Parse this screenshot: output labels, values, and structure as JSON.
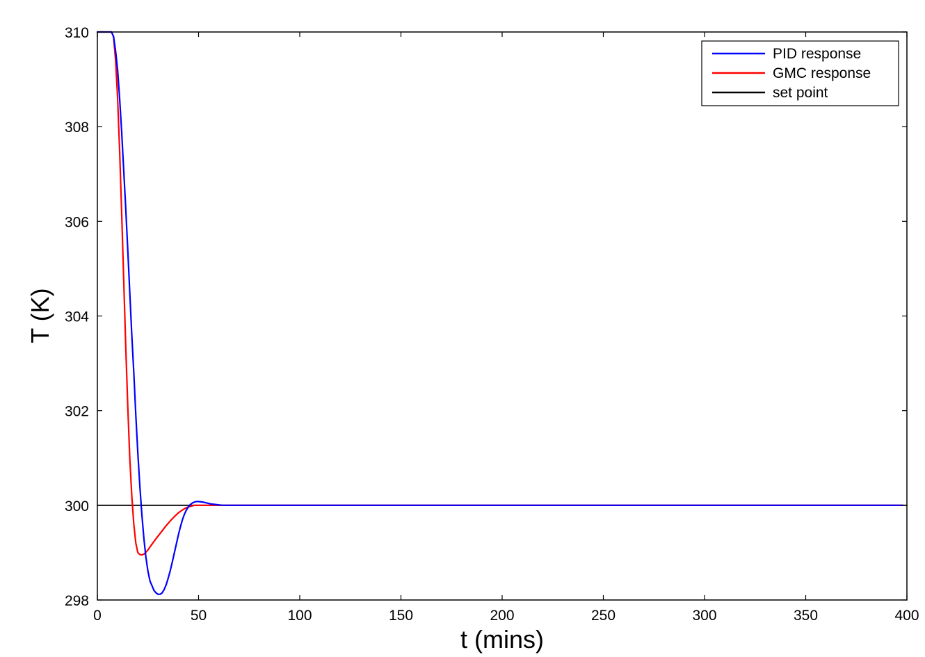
{
  "chart_data": {
    "type": "line",
    "xlabel": "t (mins)",
    "ylabel": "T (K)",
    "xlim": [
      0,
      400
    ],
    "ylim": [
      298,
      310
    ],
    "xticks": [
      "0",
      "50",
      "100",
      "150",
      "200",
      "250",
      "300",
      "350",
      "400"
    ],
    "yticks": [
      "298",
      "300",
      "302",
      "304",
      "306",
      "308",
      "310"
    ],
    "grid": false,
    "legend_position": "top-right",
    "series": [
      {
        "name": "PID response",
        "color": "#0000ff",
        "x": [
          0,
          5,
          7,
          8,
          9,
          10,
          11,
          12,
          13,
          14,
          15,
          16,
          17,
          18,
          19,
          20,
          21,
          22,
          23,
          24,
          25,
          26,
          27,
          28,
          29,
          30,
          31,
          32,
          33,
          34,
          35,
          36,
          37,
          38,
          39,
          40,
          41,
          42,
          43,
          44,
          45,
          46,
          47,
          48,
          49,
          50,
          52,
          54,
          56,
          58,
          60,
          62,
          65,
          68,
          72,
          80,
          100,
          200,
          300,
          398
        ],
        "y": [
          310,
          310,
          310,
          309.9,
          309.6,
          309.2,
          308.6,
          307.9,
          307.1,
          306.3,
          305.4,
          304.5,
          303.6,
          302.8,
          301.9,
          301.1,
          300.4,
          299.8,
          299.3,
          298.9,
          298.6,
          298.4,
          298.3,
          298.2,
          298.15,
          298.12,
          298.12,
          298.15,
          298.22,
          298.32,
          298.46,
          298.62,
          298.8,
          298.99,
          299.18,
          299.37,
          299.54,
          299.69,
          299.81,
          299.9,
          299.97,
          300.02,
          300.05,
          300.07,
          300.08,
          300.08,
          300.07,
          300.05,
          300.03,
          300.02,
          300.01,
          300.0,
          300.0,
          300.0,
          300.0,
          300.0,
          300.0,
          300.0,
          300.0,
          300.0
        ]
      },
      {
        "name": "GMC response",
        "color": "#ff0000",
        "x": [
          0,
          5,
          7,
          8,
          9,
          10,
          11,
          12,
          13,
          14,
          15,
          16,
          17,
          18,
          19,
          20,
          21,
          22,
          23,
          24,
          25,
          26,
          27,
          28,
          30,
          32,
          34,
          36,
          38,
          40,
          42,
          44,
          46,
          48,
          50,
          55,
          60,
          70,
          100,
          200,
          300,
          398
        ],
        "y": [
          310,
          310,
          310,
          309.9,
          309.4,
          308.6,
          307.5,
          306.2,
          304.8,
          303.4,
          302.1,
          301.0,
          300.2,
          299.6,
          299.2,
          299.0,
          298.96,
          298.95,
          298.97,
          299.01,
          299.06,
          299.12,
          299.18,
          299.24,
          299.35,
          299.46,
          299.57,
          299.67,
          299.76,
          299.84,
          299.9,
          299.95,
          299.98,
          300.0,
          300.0,
          300.0,
          300.0,
          300.0,
          300.0,
          300.0,
          300.0,
          300.0
        ]
      },
      {
        "name": "set point",
        "color": "#000000",
        "x": [
          0,
          400
        ],
        "y": [
          300,
          300
        ]
      }
    ]
  }
}
